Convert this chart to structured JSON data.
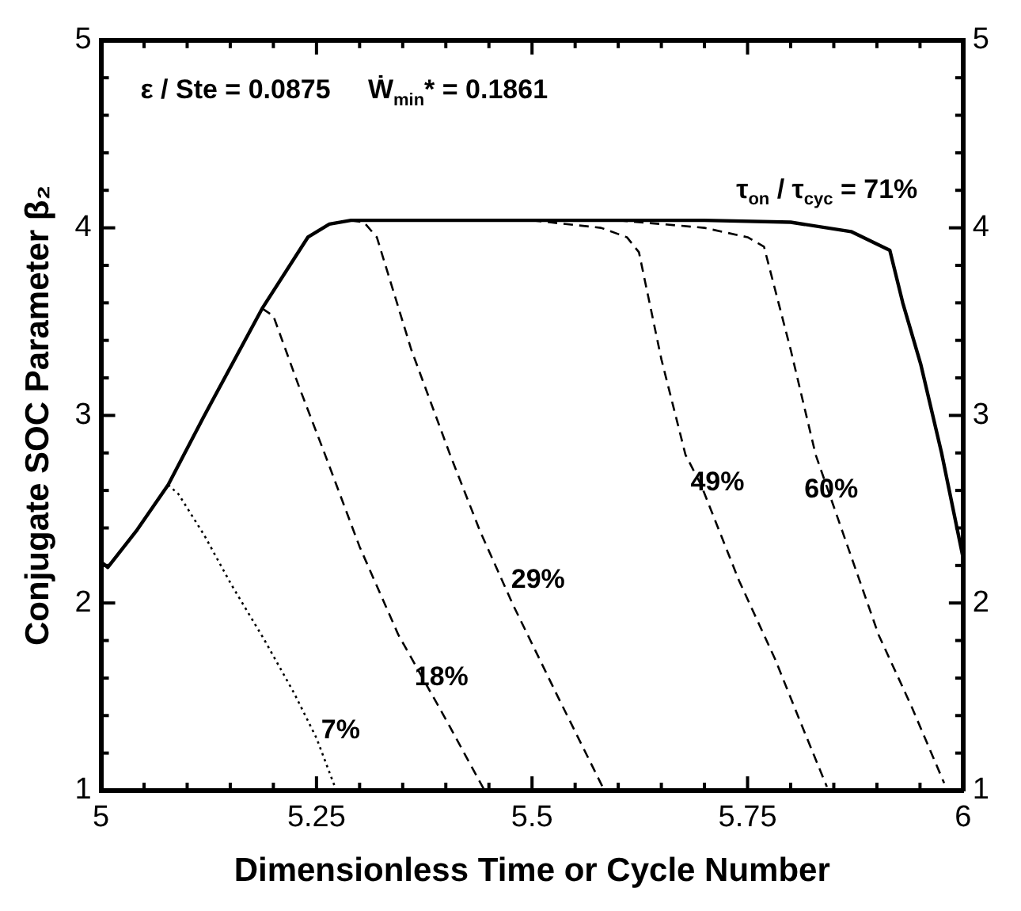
{
  "chart_data": {
    "type": "line",
    "xlabel": "Dimensionless Time or Cycle Number",
    "ylabel": "Conjugate SOC Parameter β₂",
    "xlim": [
      5,
      6
    ],
    "ylim": [
      1,
      5
    ],
    "y2lim": [
      1,
      5
    ],
    "xticks": [
      5,
      {
        "value": 5.05,
        "label": null
      },
      {
        "value": 5.1,
        "label": null
      },
      {
        "value": 5.15,
        "label": null
      },
      {
        "value": 5.2,
        "label": null
      },
      5.25,
      {
        "value": 5.3,
        "label": null
      },
      {
        "value": 5.35,
        "label": null
      },
      {
        "value": 5.4,
        "label": null
      },
      {
        "value": 5.45,
        "label": null
      },
      5.5,
      {
        "value": 5.55,
        "label": null
      },
      {
        "value": 5.6,
        "label": null
      },
      {
        "value": 5.65,
        "label": null
      },
      {
        "value": 5.7,
        "label": null
      },
      5.75,
      {
        "value": 5.8,
        "label": null
      },
      {
        "value": 5.85,
        "label": null
      },
      {
        "value": 5.9,
        "label": null
      },
      {
        "value": 5.95,
        "label": null
      },
      6
    ],
    "yticks": [
      1,
      {
        "value": 1.2,
        "label": null
      },
      {
        "value": 1.4,
        "label": null
      },
      {
        "value": 1.6,
        "label": null
      },
      {
        "value": 1.8,
        "label": null
      },
      2,
      {
        "value": 2.2,
        "label": null
      },
      {
        "value": 2.4,
        "label": null
      },
      {
        "value": 2.6,
        "label": null
      },
      {
        "value": 2.8,
        "label": null
      },
      3,
      {
        "value": 3.2,
        "label": null
      },
      {
        "value": 3.4,
        "label": null
      },
      {
        "value": 3.6,
        "label": null
      },
      {
        "value": 3.8,
        "label": null
      },
      4,
      {
        "value": 4.2,
        "label": null
      },
      {
        "value": 4.4,
        "label": null
      },
      {
        "value": 4.6,
        "label": null
      },
      {
        "value": 4.8,
        "label": null
      },
      5
    ],
    "y2ticks": [
      1,
      2,
      3,
      4,
      5
    ],
    "grid": false,
    "legend": false,
    "marker": "none",
    "series": [
      {
        "name": "τ$_{on}$ / τ$_{cyc}$ = 71%",
        "color": "#000000",
        "line_style": "solid",
        "x": [
          5,
          5.008,
          5.042,
          5.078,
          5.12,
          5.187,
          5.24,
          5.265,
          5.29,
          5.5,
          5.7,
          5.8,
          5.87,
          5.915,
          5.93,
          5.951,
          5.975,
          6
        ],
        "values": [
          2.22,
          2.19,
          2.39,
          2.63,
          3.0,
          3.57,
          3.95,
          4.02,
          4.04,
          4.04,
          4.04,
          4.03,
          3.98,
          3.88,
          3.6,
          3.27,
          2.8,
          2.24
        ]
      },
      {
        "name": "60%",
        "color": "#000000",
        "line_style": "dashed",
        "x": [
          5.6,
          5.7,
          5.75,
          5.769,
          5.8,
          5.829,
          5.87,
          5.902,
          5.94,
          5.978
        ],
        "values": [
          4.04,
          4.0,
          3.95,
          3.9,
          3.35,
          2.79,
          2.25,
          1.83,
          1.45,
          1.04
        ]
      },
      {
        "name": "49%",
        "color": "#000000",
        "line_style": "dashed",
        "x": [
          5.5,
          5.58,
          5.61,
          5.624,
          5.65,
          5.678,
          5.696,
          5.74,
          5.782,
          5.81,
          5.842
        ],
        "values": [
          4.04,
          4.0,
          3.95,
          3.87,
          3.3,
          2.79,
          2.63,
          2.12,
          1.7,
          1.38,
          1.02
        ]
      },
      {
        "name": "29%",
        "color": "#000000",
        "line_style": "dashed",
        "x": [
          5.29,
          5.305,
          5.32,
          5.36,
          5.405,
          5.44,
          5.478,
          5.53,
          5.584
        ],
        "values": [
          4.04,
          4.03,
          3.95,
          3.35,
          2.79,
          2.38,
          1.99,
          1.5,
          1.0
        ]
      },
      {
        "name": "18%",
        "color": "#000000",
        "line_style": "dashed",
        "x": [
          5.187,
          5.2,
          5.23,
          5.26,
          5.3,
          5.345,
          5.4,
          5.445
        ],
        "values": [
          3.57,
          3.53,
          3.15,
          2.79,
          2.3,
          1.83,
          1.38,
          1.0
        ]
      },
      {
        "name": "7%",
        "color": "#000000",
        "line_style": "dotted",
        "x": [
          5.078,
          5.09,
          5.12,
          5.151,
          5.19,
          5.224,
          5.25,
          5.273
        ],
        "values": [
          2.63,
          2.58,
          2.36,
          2.1,
          1.8,
          1.52,
          1.28,
          1.0
        ]
      }
    ],
    "annotations": [
      "ε / Ste = 0.0875     Ẇ$_{min}$* = 0.1861"
    ]
  }
}
